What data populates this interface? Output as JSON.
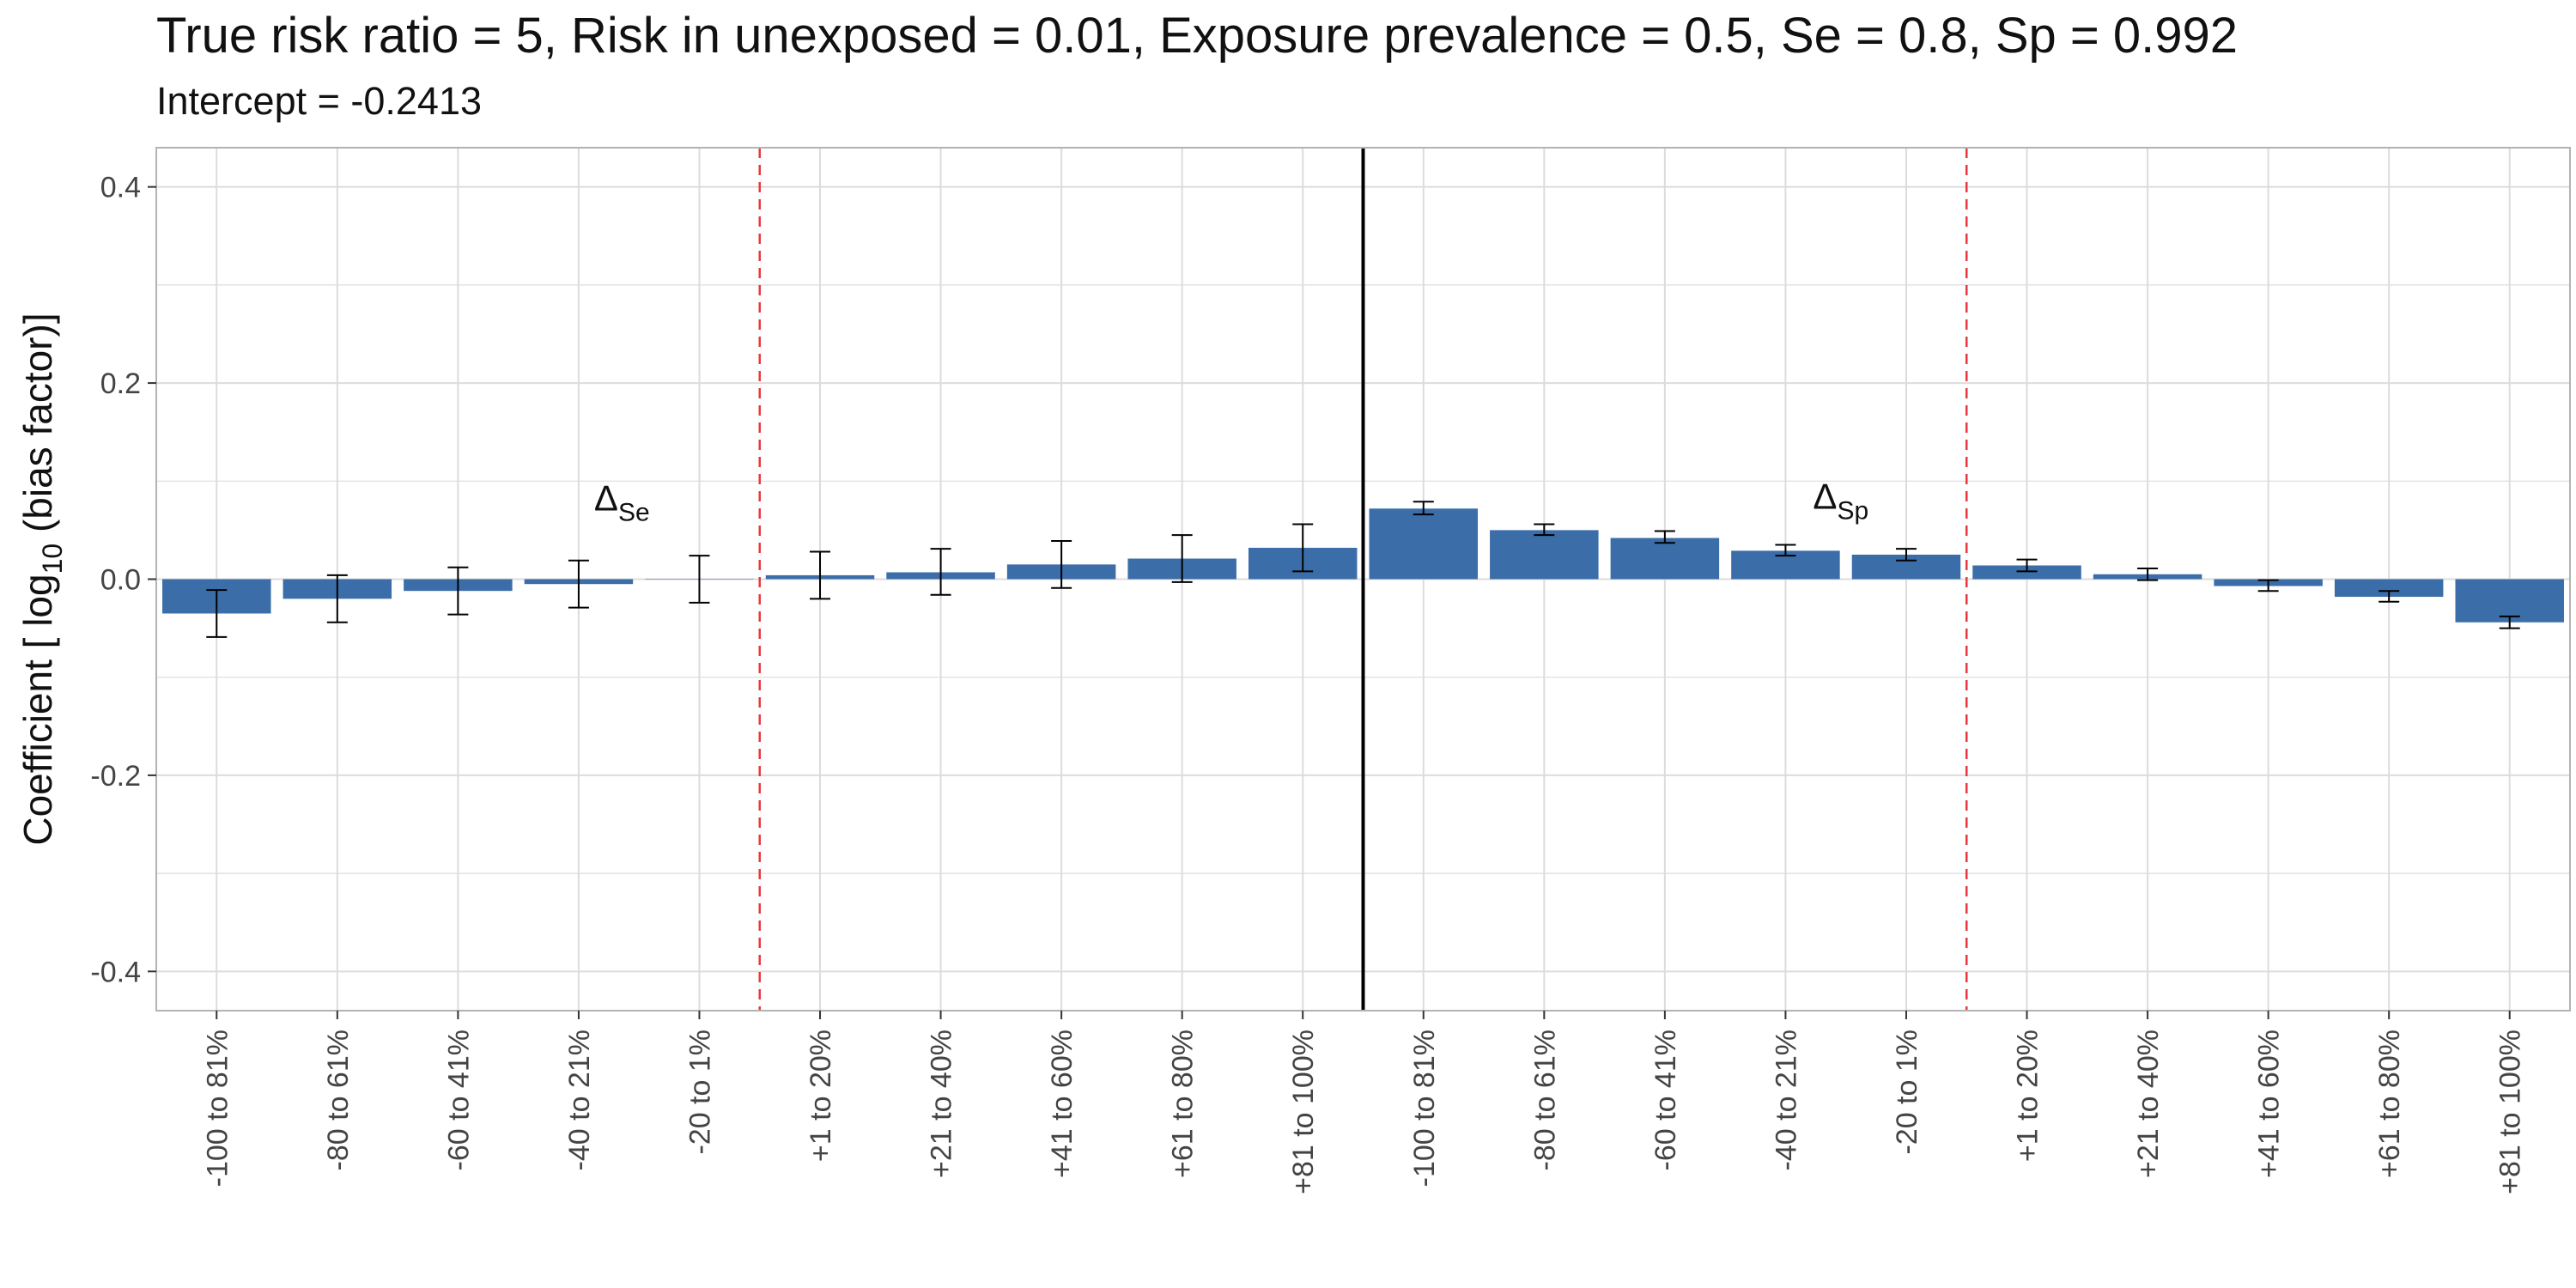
{
  "chart_data": {
    "type": "bar",
    "title": "True risk ratio = 5, Risk in unexposed = 0.01, Exposure prevalence = 0.5, Se = 0.8, Sp = 0.992",
    "subtitle": "Intercept = -0.2413",
    "ylabel": "Coefficient [ log10 (bias factor)]",
    "ylabel_parts": {
      "pre": "Coefficient [ log",
      "sub": "10",
      "post": " (bias factor)]"
    },
    "ylim": [
      -0.44,
      0.44
    ],
    "yticks": [
      0.4,
      0.2,
      0.0,
      -0.2,
      -0.4
    ],
    "ytick_labels": [
      "0.4",
      "0.2",
      "0.0",
      "-0.2",
      "-0.4"
    ],
    "grid": true,
    "bar_color": "#3b6ea8",
    "categories": [
      "-100 to 81%",
      "-80 to 61%",
      "-60 to 41%",
      "-40 to 21%",
      "-20 to 1%",
      "+1 to 20%",
      "+21 to 40%",
      "+41 to 60%",
      "+61 to 80%",
      "+81 to 100%",
      "-100 to 81%",
      "-80 to 61%",
      "-60 to 41%",
      "-40 to 21%",
      "-20 to 1%",
      "+1 to 20%",
      "+21 to 40%",
      "+41 to 60%",
      "+61 to 80%",
      "+81 to 100%"
    ],
    "values": [
      -0.035,
      -0.02,
      -0.012,
      -0.005,
      0.0,
      0.004,
      0.007,
      0.015,
      0.021,
      0.032,
      0.072,
      0.05,
      0.042,
      0.029,
      0.025,
      0.014,
      0.005,
      -0.007,
      -0.018,
      -0.044
    ],
    "err_low": [
      -0.059,
      -0.044,
      -0.036,
      -0.029,
      -0.024,
      -0.02,
      -0.016,
      -0.009,
      -0.003,
      0.008,
      0.066,
      0.045,
      0.037,
      0.024,
      0.019,
      0.008,
      -0.001,
      -0.012,
      -0.023,
      -0.05
    ],
    "err_high": [
      -0.011,
      0.004,
      0.012,
      0.019,
      0.024,
      0.028,
      0.031,
      0.039,
      0.045,
      0.056,
      0.079,
      0.056,
      0.049,
      0.035,
      0.031,
      0.02,
      0.011,
      -0.001,
      -0.012,
      -0.038
    ],
    "annotations": [
      {
        "base": "Δ",
        "sub": "Se"
      },
      {
        "base": "Δ",
        "sub": "Sp"
      }
    ],
    "colors": {
      "reference_line": "#e8383d",
      "center_line": "#000000",
      "grid": "#dcdcdc"
    }
  }
}
